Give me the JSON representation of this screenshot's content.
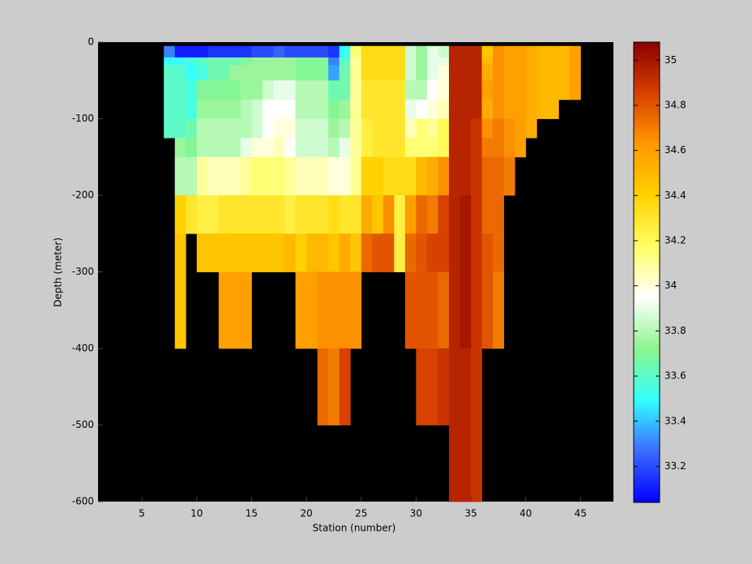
{
  "chart_data": {
    "type": "heatmap",
    "xlabel": "Station (number)",
    "ylabel": "Depth (meter)",
    "x": [
      7,
      8,
      9,
      10,
      11,
      12,
      13,
      14,
      15,
      16,
      17,
      18,
      19,
      20,
      21,
      22,
      23,
      24,
      25,
      26,
      27,
      28,
      29,
      30,
      31,
      32,
      33,
      34,
      35,
      36,
      37,
      38,
      39,
      40,
      41,
      42,
      43,
      44,
      45
    ],
    "y": [
      -5,
      -20,
      -30,
      -50,
      -75,
      -100,
      -125,
      -150,
      -200,
      -250,
      -300,
      -400,
      -500,
      -600
    ],
    "z": [
      [
        33.3,
        33.1,
        33.1,
        33.1,
        33.15,
        33.15,
        33.15,
        33.15,
        33.2,
        33.2,
        33.25,
        33.2,
        33.2,
        33.2,
        33.2,
        33.15,
        33.5,
        34.15,
        34.35,
        34.35,
        34.35,
        34.35,
        33.85,
        33.75,
        33.9,
        33.85,
        34.95,
        34.95,
        34.95,
        34.45,
        34.65,
        34.6,
        34.6,
        34.55,
        34.5,
        34.5,
        34.5,
        34.6
      ],
      [
        33.5,
        33.5,
        33.55,
        33.6,
        33.65,
        33.65,
        33.65,
        33.7,
        33.75,
        33.75,
        33.75,
        33.75,
        33.7,
        33.7,
        33.7,
        33.3,
        33.6,
        34.1,
        34.35,
        34.35,
        34.35,
        34.35,
        33.85,
        33.75,
        33.9,
        33.9,
        34.95,
        34.95,
        34.95,
        34.5,
        34.65,
        34.6,
        34.6,
        34.55,
        34.5,
        34.5,
        34.5,
        34.6
      ],
      [
        33.6,
        33.6,
        33.5,
        33.55,
        33.65,
        33.65,
        33.75,
        33.75,
        33.75,
        33.75,
        33.75,
        33.75,
        33.7,
        33.7,
        33.7,
        33.35,
        33.65,
        34.1,
        34.35,
        34.35,
        34.35,
        34.35,
        33.85,
        33.75,
        33.9,
        34.0,
        34.95,
        34.95,
        34.95,
        34.55,
        34.65,
        34.6,
        34.6,
        34.55,
        34.5,
        34.5,
        34.5,
        34.6
      ],
      [
        33.6,
        33.6,
        33.55,
        33.7,
        33.7,
        33.7,
        33.7,
        33.75,
        33.75,
        33.85,
        33.9,
        33.9,
        33.8,
        33.8,
        33.8,
        33.65,
        33.65,
        34.1,
        34.3,
        34.3,
        34.3,
        34.3,
        33.8,
        33.8,
        33.95,
        34.0,
        34.95,
        34.95,
        34.95,
        34.6,
        34.65,
        34.6,
        34.6,
        34.55,
        34.5,
        34.5,
        34.5,
        34.6
      ],
      [
        33.6,
        33.6,
        33.55,
        33.75,
        33.75,
        33.75,
        33.75,
        33.8,
        33.85,
        33.95,
        33.95,
        33.95,
        33.8,
        33.8,
        33.8,
        33.7,
        33.75,
        34.1,
        34.3,
        34.3,
        34.3,
        34.3,
        33.9,
        33.95,
        34.0,
        34.05,
        34.95,
        34.95,
        34.95,
        34.55,
        34.65,
        34.6,
        34.6,
        34.55,
        34.5,
        34.5,
        null,
        null
      ],
      [
        33.6,
        33.6,
        33.65,
        33.8,
        33.8,
        33.8,
        33.8,
        33.8,
        33.85,
        33.95,
        34.0,
        34.0,
        33.85,
        33.85,
        33.85,
        33.75,
        33.8,
        34.1,
        34.25,
        34.3,
        34.3,
        34.3,
        34.05,
        34.15,
        34.1,
        34.2,
        34.95,
        34.95,
        34.9,
        34.65,
        34.7,
        34.65,
        34.6,
        34.55,
        null,
        null,
        null,
        null
      ],
      [
        null,
        33.75,
        33.7,
        33.8,
        33.8,
        33.8,
        33.8,
        33.9,
        34.0,
        34.0,
        34.05,
        33.95,
        33.85,
        33.85,
        33.85,
        33.8,
        33.9,
        34.1,
        34.25,
        34.3,
        34.3,
        34.3,
        34.15,
        34.15,
        34.15,
        34.2,
        34.95,
        34.95,
        34.9,
        34.7,
        34.7,
        34.65,
        34.6,
        null,
        null,
        null,
        null,
        null
      ],
      [
        null,
        33.8,
        33.8,
        34.1,
        34.05,
        34.05,
        34.05,
        34.1,
        34.15,
        34.15,
        34.15,
        34.1,
        34.05,
        34.05,
        34.05,
        34.0,
        34.0,
        34.1,
        34.4,
        34.4,
        34.35,
        34.35,
        34.35,
        34.5,
        34.55,
        34.65,
        34.95,
        34.95,
        34.9,
        34.75,
        34.75,
        34.7,
        null,
        null,
        null,
        null,
        null,
        null
      ],
      [
        null,
        34.4,
        34.3,
        34.25,
        34.25,
        34.3,
        34.3,
        34.3,
        34.3,
        34.3,
        34.3,
        34.25,
        34.3,
        34.3,
        34.3,
        34.35,
        34.3,
        34.3,
        34.55,
        34.45,
        34.65,
        34.25,
        34.6,
        34.75,
        34.7,
        34.85,
        34.95,
        35.0,
        34.9,
        34.75,
        34.75,
        null,
        null,
        null,
        null,
        null,
        null,
        null
      ],
      [
        null,
        34.45,
        null,
        34.45,
        34.45,
        34.45,
        34.45,
        34.45,
        34.45,
        34.45,
        34.45,
        34.5,
        34.4,
        34.5,
        34.5,
        34.45,
        34.55,
        34.45,
        34.75,
        34.8,
        34.8,
        34.25,
        34.75,
        34.8,
        34.85,
        34.85,
        34.95,
        35.0,
        34.9,
        34.8,
        34.75,
        null,
        null,
        null,
        null,
        null,
        null,
        null
      ],
      [
        null,
        34.45,
        null,
        null,
        null,
        34.6,
        34.6,
        34.6,
        null,
        null,
        null,
        null,
        34.6,
        34.6,
        34.65,
        34.65,
        34.65,
        34.65,
        null,
        null,
        null,
        null,
        34.8,
        34.8,
        34.8,
        34.75,
        34.95,
        35.0,
        34.9,
        34.8,
        34.7,
        null,
        null,
        null,
        null,
        null,
        null,
        null
      ],
      [
        null,
        null,
        null,
        null,
        null,
        null,
        null,
        null,
        null,
        null,
        null,
        null,
        null,
        null,
        34.75,
        34.7,
        34.85,
        null,
        null,
        null,
        null,
        null,
        null,
        34.85,
        34.85,
        34.9,
        34.95,
        34.95,
        34.9,
        null,
        null,
        null,
        null,
        null,
        null,
        null,
        null,
        null
      ],
      [
        null,
        null,
        null,
        null,
        null,
        null,
        null,
        null,
        null,
        null,
        null,
        null,
        null,
        null,
        null,
        null,
        null,
        null,
        null,
        null,
        null,
        null,
        null,
        null,
        null,
        null,
        34.95,
        34.95,
        34.9,
        null,
        null,
        null,
        null,
        null,
        null,
        null,
        null,
        null
      ]
    ],
    "xlim": [
      1,
      48
    ],
    "xticks": [
      5,
      10,
      15,
      20,
      25,
      30,
      35,
      40,
      45
    ],
    "ylim": [
      -600,
      0
    ],
    "yticks": [
      -600,
      -500,
      -400,
      -300,
      -200,
      -100,
      0
    ],
    "clim": [
      33.04,
      35.08
    ],
    "cticks": [
      33.2,
      33.4,
      33.6,
      33.8,
      34,
      34.2,
      34.4,
      34.6,
      34.8,
      35
    ],
    "colormap": [
      "#0000ff",
      "#3a6cff",
      "#33ffff",
      "#8cf58c",
      "#ffffff",
      "#ffff66",
      "#ffd200",
      "#ff9900",
      "#d84000",
      "#8a0000"
    ],
    "background": "#000000"
  }
}
